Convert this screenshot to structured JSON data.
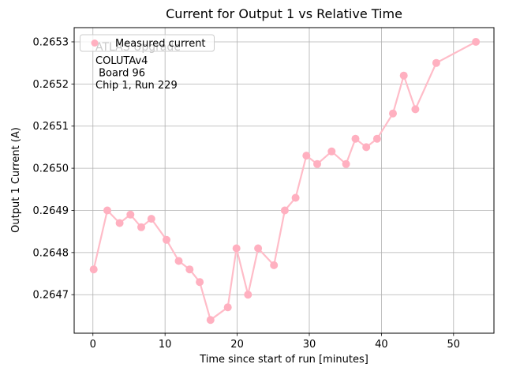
{
  "chart_data": {
    "type": "line",
    "title": "Current for Output 1 vs Relative Time",
    "xlabel": "Time since start of run [minutes]",
    "ylabel": "Output 1 Current (A)",
    "legend": {
      "position": "upper left",
      "entries": [
        {
          "label": "Measured current",
          "marker": "circle-marker",
          "marker_color": "#ffb0c0"
        }
      ]
    },
    "watermark": "ATLAS Upgrade",
    "watermark_color": "#c9c9c9",
    "annotation_lines": [
      "COLUTAv4",
      " Board 96",
      "Chip 1, Run 229"
    ],
    "grid": true,
    "grid_color": "#b0b0b0",
    "line_color": "#ffbcc8",
    "marker_color": "#ffb0c0",
    "xlim": [
      -2.6,
      55.6
    ],
    "ylim": [
      0.2646086,
      0.2653337
    ],
    "xticks": [
      0,
      10,
      20,
      30,
      40,
      50
    ],
    "yticks": [
      0.2647,
      0.2648,
      0.2649,
      0.265,
      0.2651,
      0.2652,
      0.2653
    ],
    "ytick_labels": [
      "0.2647",
      "0.2648",
      "0.2649",
      "0.2650",
      "0.2651",
      "0.2652",
      "0.2653"
    ],
    "series": [
      {
        "name": "Measured current",
        "x": [
          0.1,
          2.0,
          3.7,
          5.2,
          6.7,
          8.1,
          10.2,
          11.9,
          13.4,
          14.8,
          16.3,
          18.7,
          19.9,
          21.5,
          22.9,
          25.1,
          26.6,
          28.1,
          29.6,
          31.1,
          33.1,
          35.1,
          36.4,
          37.9,
          39.4,
          41.6,
          43.1,
          44.7,
          47.6,
          53.1
        ],
        "y": [
          0.26476,
          0.2649,
          0.26487,
          0.26489,
          0.26486,
          0.26488,
          0.26483,
          0.26478,
          0.26476,
          0.26473,
          0.26464,
          0.26467,
          0.26481,
          0.2647,
          0.26481,
          0.26477,
          0.2649,
          0.26493,
          0.26503,
          0.26501,
          0.26504,
          0.26501,
          0.26507,
          0.26505,
          0.26507,
          0.26513,
          0.26522,
          0.26514,
          0.26525,
          0.2653
        ]
      }
    ]
  }
}
